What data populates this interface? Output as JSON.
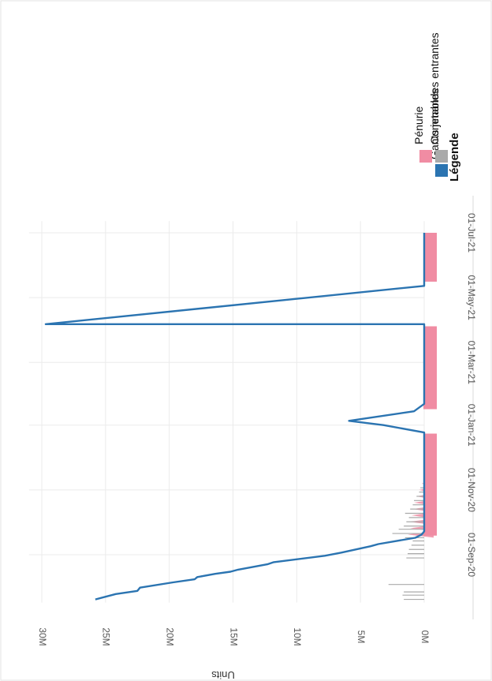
{
  "chart_data": {
    "type": "line",
    "ylabel": "Units",
    "y_ticks": [
      "0M",
      "5M",
      "10M",
      "15M",
      "20M",
      "25M",
      "30M"
    ],
    "ylim": [
      0,
      31000000
    ],
    "x_ticks": [
      "01-Sep-20",
      "01-Nov-20",
      "01-Jan-21",
      "01-Mar-21",
      "01-May-21",
      "01-Jul-21"
    ],
    "xlim": [
      "2020-07-18",
      "2021-07-12"
    ],
    "grid": true,
    "legend": {
      "title": "Légende",
      "placement": "right",
      "entries": [
        {
          "label": "Gants jetables",
          "color": "#2b74b1"
        },
        {
          "label": "Commandes entrantes",
          "color": "#aaaaaa"
        },
        {
          "label": "Pénurie",
          "color": "#f08ca3"
        }
      ]
    },
    "series": [
      {
        "name": "Gants jetables",
        "color": "#2b74b1",
        "points": [
          [
            "2020-07-21",
            25800000
          ],
          [
            "2020-07-26",
            24200000
          ],
          [
            "2020-07-29",
            22500000
          ],
          [
            "2020-08-01",
            22300000
          ],
          [
            "2020-08-06",
            19700000
          ],
          [
            "2020-08-09",
            18000000
          ],
          [
            "2020-08-11",
            17800000
          ],
          [
            "2020-08-14",
            16400000
          ],
          [
            "2020-08-16",
            15200000
          ],
          [
            "2020-08-18",
            14600000
          ],
          [
            "2020-08-23",
            12300000
          ],
          [
            "2020-08-25",
            11800000
          ],
          [
            "2020-08-31",
            7800000
          ],
          [
            "2020-09-03",
            6500000
          ],
          [
            "2020-09-09",
            4200000
          ],
          [
            "2020-09-11",
            3600000
          ],
          [
            "2020-09-17",
            700000
          ],
          [
            "2020-09-20",
            200000
          ],
          [
            "2020-09-23",
            0
          ],
          [
            "2020-12-25",
            0
          ],
          [
            "2021-01-01",
            3200000
          ],
          [
            "2021-01-05",
            5900000
          ],
          [
            "2021-01-14",
            800000
          ],
          [
            "2021-01-21",
            0
          ],
          [
            "2021-04-06",
            0
          ],
          [
            "2021-04-06",
            29700000
          ],
          [
            "2021-05-12",
            0
          ],
          [
            "2021-07-01",
            0
          ]
        ]
      },
      {
        "name": "Commandes entrantes",
        "color": "#aaaaaa",
        "points": [
          [
            "2020-07-21",
            1600000
          ],
          [
            "2020-07-25",
            1700000
          ],
          [
            "2020-07-28",
            1600000
          ],
          [
            "2020-08-04",
            2800000
          ],
          [
            "2020-08-29",
            1400000
          ],
          [
            "2020-09-02",
            1300000
          ],
          [
            "2020-09-06",
            1200000
          ],
          [
            "2020-09-10",
            1000000
          ],
          [
            "2020-09-14",
            900000
          ],
          [
            "2020-09-17",
            1500000
          ],
          [
            "2020-09-21",
            2500000
          ],
          [
            "2020-09-25",
            2000000
          ],
          [
            "2020-09-28",
            1600000
          ],
          [
            "2020-10-02",
            1400000
          ],
          [
            "2020-10-06",
            1200000
          ],
          [
            "2020-10-10",
            1500000
          ],
          [
            "2020-10-14",
            1100000
          ],
          [
            "2020-10-18",
            900000
          ],
          [
            "2020-10-22",
            800000
          ],
          [
            "2020-10-26",
            600000
          ],
          [
            "2020-10-30",
            400000
          ],
          [
            "2020-11-03",
            300000
          ]
        ]
      },
      {
        "name": "Pénurie",
        "color": "#f08ca3",
        "bands": [
          [
            "2020-09-19",
            "2020-12-24"
          ],
          [
            "2021-01-16",
            "2021-04-04"
          ],
          [
            "2021-05-16",
            "2021-07-01"
          ]
        ],
        "spikes": [
          [
            "2020-09-20",
            1300000
          ],
          [
            "2020-09-26",
            1100000
          ],
          [
            "2020-10-02",
            1200000
          ],
          [
            "2020-10-08",
            1000000
          ],
          [
            "2020-10-14",
            900000
          ],
          [
            "2020-10-20",
            800000
          ],
          [
            "2020-10-26",
            600000
          ],
          [
            "2020-11-01",
            400000
          ],
          [
            "2020-11-07",
            200000
          ]
        ]
      }
    ]
  }
}
